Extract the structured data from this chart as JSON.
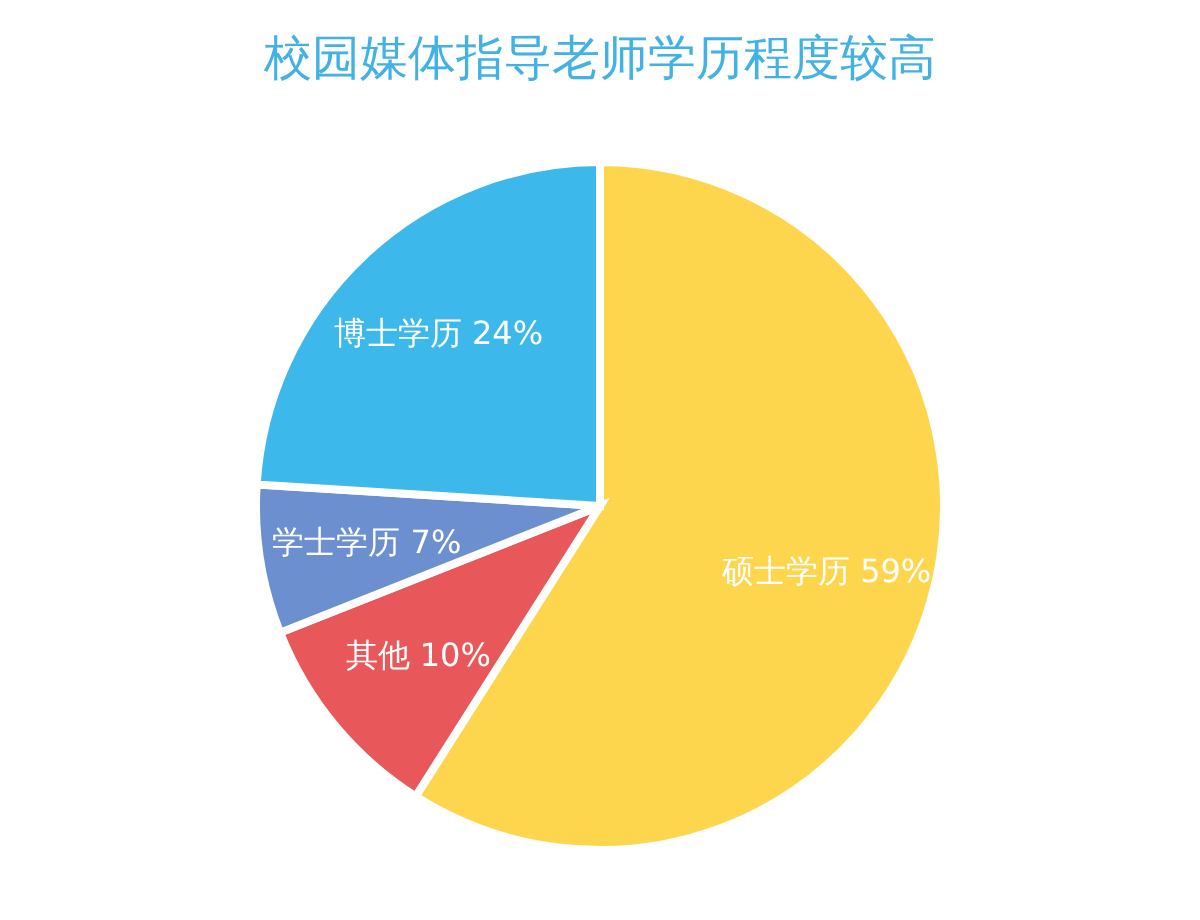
{
  "chart_data": {
    "type": "pie",
    "title": "校园媒体指导老师学历程度较高",
    "categories": [
      "硕士学历",
      "其他",
      "学士学历",
      "博士学历"
    ],
    "values": [
      59,
      10,
      7,
      24
    ],
    "colors": [
      "#fdd64d",
      "#e8585b",
      "#6b8fcf",
      "#3cb8ea"
    ],
    "value_labels": [
      "59%",
      "10%",
      "7%",
      "24%"
    ]
  }
}
